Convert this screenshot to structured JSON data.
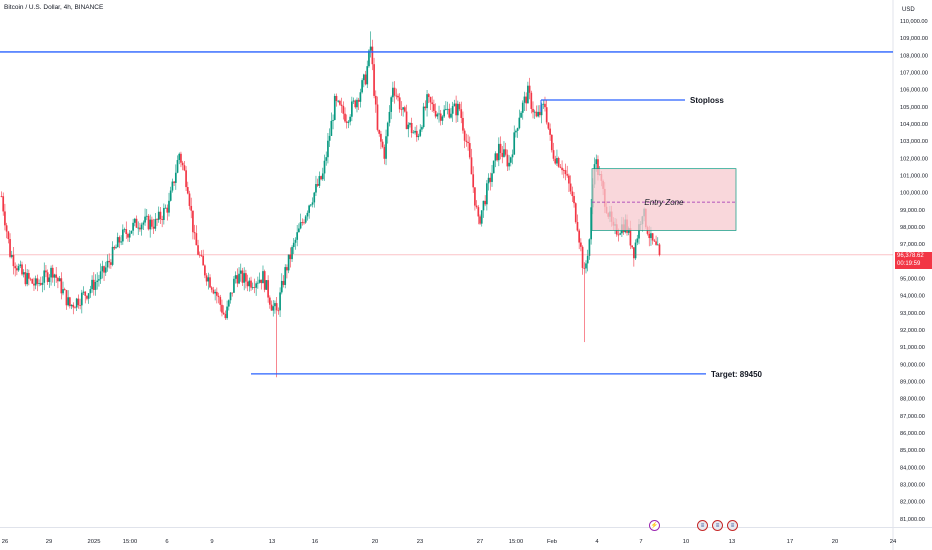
{
  "header": {
    "title": "Bitcoin / U.S. Dollar, 4h, BINANCE",
    "currency": "USD"
  },
  "price_tag": {
    "price": "96,378.62",
    "countdown": "00:19:59"
  },
  "colors": {
    "up": "#089981",
    "down": "#f23645",
    "level": "#2962ff",
    "zone_fill": "#f7c9cf",
    "zone_border": "#089981"
  },
  "events": [
    {
      "icon": "lightning-icon"
    },
    {
      "icon": "us-flag-icon"
    },
    {
      "icon": "us-flag-icon"
    },
    {
      "icon": "us-flag-icon"
    }
  ],
  "chart_data": {
    "type": "candlestick",
    "title": "Bitcoin / U.S. Dollar, 4h, BINANCE",
    "y_ticks": [
      "110,000.00",
      "109,000.00",
      "108,000.00",
      "107,000.00",
      "106,000.00",
      "105,000.00",
      "104,000.00",
      "103,000.00",
      "102,000.00",
      "101,000.00",
      "100,000.00",
      "99,000.00",
      "98,000.00",
      "97,000.00",
      "96,000.00",
      "95,000.00",
      "94,000.00",
      "93,000.00",
      "92,000.00",
      "91,000.00",
      "90,000.00",
      "89,000.00",
      "88,000.00",
      "87,000.00",
      "86,000.00",
      "85,000.00",
      "84,000.00",
      "83,000.00",
      "82,000.00",
      "81,000.00"
    ],
    "ylim": [
      80500,
      110700
    ],
    "x_ticks": [
      "26",
      "29",
      "2025",
      "15:00",
      "6",
      "9",
      "13",
      "16",
      "20",
      "23",
      "27",
      "15:00",
      "Feb",
      "4",
      "7",
      "10",
      "13",
      "17",
      "20",
      "24"
    ],
    "last_price": 96378.62,
    "overall": {
      "low": 89250,
      "high": 109400
    },
    "levels": [
      {
        "name": "Resistance",
        "label": "",
        "price": 108200
      },
      {
        "name": "Stoploss",
        "label": "Stoploss",
        "price": 105400
      },
      {
        "name": "Target",
        "label": "Target: 89450",
        "price": 89450
      }
    ],
    "entry_zone": {
      "label": "Entry Zone",
      "top": 101400,
      "bottom": 97800,
      "mid": 99450
    },
    "path": [
      {
        "i": 0,
        "p": 99800
      },
      {
        "i": 5,
        "p": 96500
      },
      {
        "i": 12,
        "p": 95200
      },
      {
        "i": 20,
        "p": 94600
      },
      {
        "i": 30,
        "p": 95500
      },
      {
        "i": 40,
        "p": 93400
      },
      {
        "i": 50,
        "p": 94200
      },
      {
        "i": 60,
        "p": 95400
      },
      {
        "i": 70,
        "p": 97400
      },
      {
        "i": 80,
        "p": 98300
      },
      {
        "i": 90,
        "p": 98200
      },
      {
        "i": 98,
        "p": 99300
      },
      {
        "i": 104,
        "p": 102300
      },
      {
        "i": 109,
        "p": 100400
      },
      {
        "i": 113,
        "p": 97200
      },
      {
        "i": 118,
        "p": 95600
      },
      {
        "i": 125,
        "p": 94300
      },
      {
        "i": 131,
        "p": 92700
      },
      {
        "i": 137,
        "p": 95200
      },
      {
        "i": 145,
        "p": 94800
      },
      {
        "i": 153,
        "p": 95100
      },
      {
        "i": 158,
        "p": 93500
      },
      {
        "i": 161,
        "p": 93000
      },
      {
        "i": 166,
        "p": 95400
      },
      {
        "i": 172,
        "p": 97200
      },
      {
        "i": 180,
        "p": 99400
      },
      {
        "i": 188,
        "p": 101000
      },
      {
        "i": 195,
        "p": 105200
      },
      {
        "i": 202,
        "p": 104400
      },
      {
        "i": 208,
        "p": 105500
      },
      {
        "i": 213,
        "p": 106700
      },
      {
        "i": 216,
        "p": 108500
      },
      {
        "i": 220,
        "p": 103500
      },
      {
        "i": 224,
        "p": 102300
      },
      {
        "i": 229,
        "p": 106300
      },
      {
        "i": 236,
        "p": 104300
      },
      {
        "i": 243,
        "p": 103200
      },
      {
        "i": 249,
        "p": 105300
      },
      {
        "i": 256,
        "p": 104600
      },
      {
        "i": 262,
        "p": 104800
      },
      {
        "i": 268,
        "p": 104900
      },
      {
        "i": 273,
        "p": 102500
      },
      {
        "i": 279,
        "p": 98200
      },
      {
        "i": 285,
        "p": 100500
      },
      {
        "i": 291,
        "p": 102600
      },
      {
        "i": 297,
        "p": 101700
      },
      {
        "i": 303,
        "p": 104600
      },
      {
        "i": 308,
        "p": 105800
      },
      {
        "i": 313,
        "p": 104300
      },
      {
        "i": 318,
        "p": 105100
      },
      {
        "i": 322,
        "p": 102400
      },
      {
        "i": 328,
        "p": 101600
      },
      {
        "i": 333,
        "p": 100100
      },
      {
        "i": 337,
        "p": 98200
      },
      {
        "i": 341,
        "p": 95200
      },
      {
        "i": 344,
        "p": 97300
      },
      {
        "i": 347,
        "p": 102100
      },
      {
        "i": 352,
        "p": 100000
      },
      {
        "i": 358,
        "p": 97700
      },
      {
        "i": 365,
        "p": 98200
      },
      {
        "i": 370,
        "p": 96600
      },
      {
        "i": 375,
        "p": 99000
      },
      {
        "i": 380,
        "p": 97200
      },
      {
        "i": 385,
        "p": 96400
      }
    ]
  }
}
